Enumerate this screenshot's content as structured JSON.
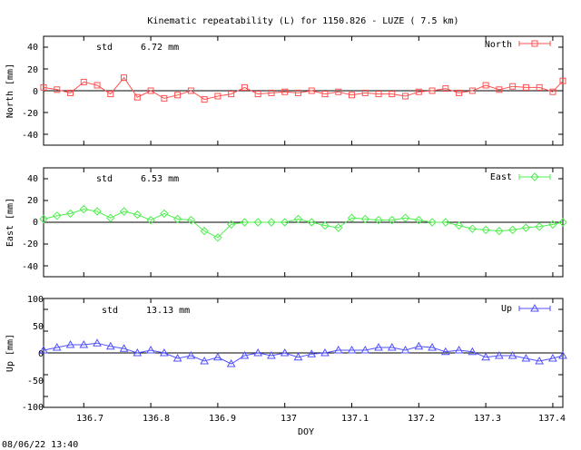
{
  "title": "Kinematic repeatability (L) for 1150.826 - LUZE  (  7.5 km)",
  "xlabel": "DOY",
  "timestamp": "08/06/22 13:40",
  "x_ticks": [
    "136.7",
    "136.8",
    "136.9",
    "137",
    "137.1",
    "137.2",
    "137.3",
    "137.4"
  ],
  "panels": [
    {
      "id": "north",
      "ylabel": "North [mm]",
      "std_label": "std",
      "std_value": "6.72 mm",
      "legend": "North",
      "color": "#ff5050",
      "marker": "square",
      "y_ticks": [
        "40",
        "20",
        "0",
        "-20",
        "-40"
      ]
    },
    {
      "id": "east",
      "ylabel": "East [mm]",
      "std_label": "std",
      "std_value": "6.53 mm",
      "legend": "East",
      "color": "#50ee50",
      "marker": "diamond",
      "y_ticks": [
        "40",
        "20",
        "0",
        "-20",
        "-40"
      ]
    },
    {
      "id": "up",
      "ylabel": "Up [mm]",
      "std_label": "std",
      "std_value": "13.13 mm",
      "legend": "Up",
      "color": "#5050ff",
      "marker": "triangle",
      "y_ticks": [
        "100",
        "50",
        "0",
        "-50",
        "-100"
      ]
    }
  ],
  "chart_data": [
    {
      "type": "scatter",
      "title": "Kinematic repeatability (L) for 1150.826 - LUZE  (  7.5 km)",
      "xlabel": "DOY",
      "ylabel": "North [mm]",
      "xlim": [
        136.64,
        137.415
      ],
      "ylim": [
        -50,
        50
      ],
      "series": [
        {
          "name": "North",
          "std_mm": 6.72,
          "x": [
            136.64,
            136.66,
            136.68,
            136.7,
            136.72,
            136.74,
            136.76,
            136.78,
            136.8,
            136.82,
            136.84,
            136.86,
            136.88,
            136.9,
            136.92,
            136.94,
            136.96,
            136.98,
            137.0,
            137.02,
            137.04,
            137.06,
            137.08,
            137.1,
            137.12,
            137.14,
            137.16,
            137.18,
            137.2,
            137.22,
            137.24,
            137.26,
            137.28,
            137.3,
            137.32,
            137.34,
            137.36,
            137.38,
            137.4,
            137.415
          ],
          "y": [
            3,
            1,
            -2,
            8,
            5,
            -3,
            12,
            -6,
            0,
            -7,
            -4,
            0,
            -8,
            -5,
            -3,
            3,
            -3,
            -2,
            -1,
            -2,
            0,
            -3,
            -1,
            -4,
            -2,
            -3,
            -3,
            -5,
            -1,
            0,
            2,
            -2,
            0,
            5,
            1,
            4,
            3,
            3,
            -1,
            9
          ]
        }
      ]
    },
    {
      "type": "scatter",
      "xlabel": "DOY",
      "ylabel": "East [mm]",
      "xlim": [
        136.64,
        137.415
      ],
      "ylim": [
        -50,
        50
      ],
      "series": [
        {
          "name": "East",
          "std_mm": 6.53,
          "x": [
            136.64,
            136.66,
            136.68,
            136.7,
            136.72,
            136.74,
            136.76,
            136.78,
            136.8,
            136.82,
            136.84,
            136.86,
            136.88,
            136.9,
            136.92,
            136.94,
            136.96,
            136.98,
            137.0,
            137.02,
            137.04,
            137.06,
            137.08,
            137.1,
            137.12,
            137.14,
            137.16,
            137.18,
            137.2,
            137.22,
            137.24,
            137.26,
            137.28,
            137.3,
            137.32,
            137.34,
            137.36,
            137.38,
            137.4,
            137.415
          ],
          "y": [
            3,
            6,
            8,
            12,
            10,
            4,
            10,
            7,
            2,
            8,
            3,
            2,
            -8,
            -14,
            -2,
            0,
            0,
            0,
            0,
            3,
            0,
            -3,
            -5,
            4,
            3,
            2,
            2,
            4,
            2,
            0,
            0,
            -3,
            -6,
            -7,
            -8,
            -7,
            -5,
            -4,
            -2,
            0
          ]
        }
      ]
    },
    {
      "type": "scatter",
      "xlabel": "DOY",
      "ylabel": "Up [mm]",
      "xlim": [
        136.64,
        137.415
      ],
      "ylim": [
        -100,
        100
      ],
      "series": [
        {
          "name": "Up",
          "std_mm": 13.13,
          "x": [
            136.64,
            136.66,
            136.68,
            136.7,
            136.72,
            136.74,
            136.76,
            136.78,
            136.8,
            136.82,
            136.84,
            136.86,
            136.88,
            136.9,
            136.92,
            136.94,
            136.96,
            136.98,
            137.0,
            137.02,
            137.04,
            137.06,
            137.08,
            137.1,
            137.12,
            137.14,
            137.16,
            137.18,
            137.2,
            137.22,
            137.24,
            137.26,
            137.28,
            137.3,
            137.32,
            137.34,
            137.36,
            137.38,
            137.4,
            137.415
          ],
          "y": [
            5,
            10,
            15,
            15,
            18,
            12,
            8,
            0,
            5,
            0,
            -10,
            -5,
            -15,
            -8,
            -20,
            -5,
            0,
            -5,
            0,
            -8,
            -2,
            0,
            5,
            5,
            5,
            10,
            10,
            5,
            12,
            10,
            2,
            5,
            2,
            -8,
            -5,
            -5,
            -10,
            -15,
            -10,
            -5
          ]
        }
      ]
    }
  ]
}
